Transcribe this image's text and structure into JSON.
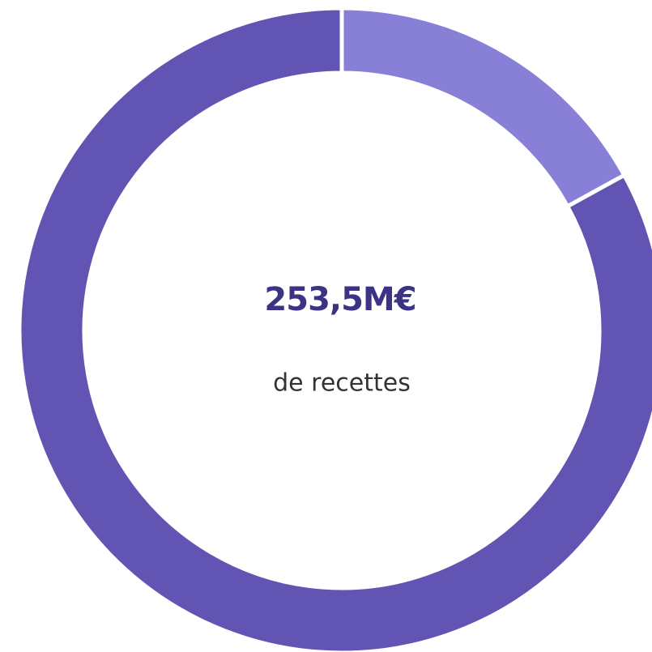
{
  "chart_data": {
    "type": "donut",
    "title": "253,5M€",
    "subtitle": "de recettes",
    "values": [
      17,
      83
    ],
    "colors": [
      "#8880d6",
      "#6254b2"
    ]
  }
}
